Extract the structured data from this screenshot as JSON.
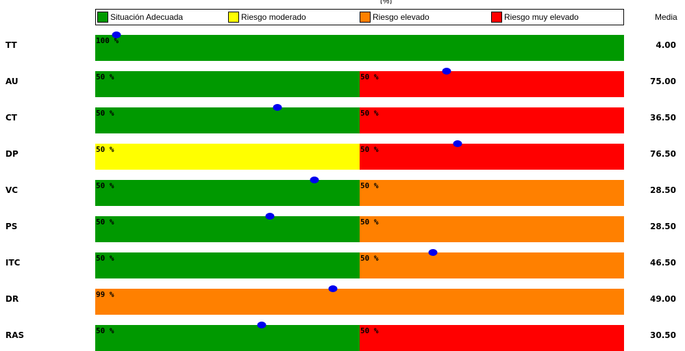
{
  "header_fragment": "(%)",
  "legend": [
    {
      "label": "Situación Adecuada",
      "color": "#009900"
    },
    {
      "label": "Riesgo moderado",
      "color": "#ffff00"
    },
    {
      "label": "Riesgo elevado",
      "color": "#ff8000"
    },
    {
      "label": "Riesgo muy elevado",
      "color": "#ff0000"
    }
  ],
  "media_header": "Media",
  "chart_data": {
    "type": "bar",
    "orientation": "horizontal",
    "stacked": true,
    "categories": [
      "TT",
      "AU",
      "CT",
      "DP",
      "VC",
      "PS",
      "ITC",
      "DR",
      "RAS"
    ],
    "xlim": [
      0,
      100
    ],
    "rows": [
      {
        "label": "TT",
        "mean": "4.00",
        "marker": 4,
        "segments": [
          {
            "value": 100,
            "text": "100 %",
            "color": "#009900"
          }
        ]
      },
      {
        "label": "AU",
        "mean": "75.00",
        "marker": 66.5,
        "segments": [
          {
            "value": 50,
            "text": "50 %",
            "color": "#009900"
          },
          {
            "value": 50,
            "text": "50 %",
            "color": "#ff0000"
          }
        ]
      },
      {
        "label": "CT",
        "mean": "36.50",
        "marker": 34.5,
        "segments": [
          {
            "value": 50,
            "text": "50 %",
            "color": "#009900"
          },
          {
            "value": 50,
            "text": "50 %",
            "color": "#ff0000"
          }
        ]
      },
      {
        "label": "DP",
        "mean": "76.50",
        "marker": 68.5,
        "segments": [
          {
            "value": 50,
            "text": "50 %",
            "color": "#ffff00"
          },
          {
            "value": 50,
            "text": "50 %",
            "color": "#ff0000"
          }
        ]
      },
      {
        "label": "VC",
        "mean": "28.50",
        "marker": 41.5,
        "segments": [
          {
            "value": 50,
            "text": "50 %",
            "color": "#009900"
          },
          {
            "value": 50,
            "text": "50 %",
            "color": "#ff8000"
          }
        ]
      },
      {
        "label": "PS",
        "mean": "28.50",
        "marker": 33,
        "segments": [
          {
            "value": 50,
            "text": "50 %",
            "color": "#009900"
          },
          {
            "value": 50,
            "text": "50 %",
            "color": "#ff8000"
          }
        ]
      },
      {
        "label": "ITC",
        "mean": "46.50",
        "marker": 63.8,
        "segments": [
          {
            "value": 50,
            "text": "50 %",
            "color": "#009900"
          },
          {
            "value": 50,
            "text": "50 %",
            "color": "#ff8000"
          }
        ]
      },
      {
        "label": "DR",
        "mean": "49.00",
        "marker": 45,
        "segments": [
          {
            "value": 99,
            "text": "99 %",
            "color": "#ff8000"
          }
        ]
      },
      {
        "label": "RAS",
        "mean": "30.50",
        "marker": 31.5,
        "segments": [
          {
            "value": 50,
            "text": "50 %",
            "color": "#009900"
          },
          {
            "value": 50,
            "text": "50 %",
            "color": "#ff0000"
          }
        ]
      }
    ]
  }
}
